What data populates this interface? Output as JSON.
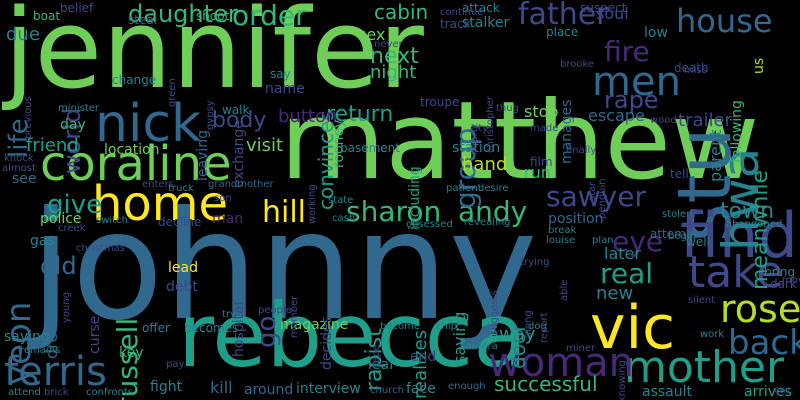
{
  "palette": {
    "background": "#000000",
    "yellow": "#fde725",
    "lime": "#b5de2b",
    "green": "#6ece58",
    "mint": "#35b779",
    "teal": "#1f9e89",
    "cyan": "#26828e",
    "blue": "#31688e",
    "indigo": "#3e4989",
    "purple": "#482878",
    "dark": "#440154"
  },
  "words": [
    {
      "text": "jennifer"
    },
    {
      "text": "johnny"
    },
    {
      "text": "matthew"
    },
    {
      "text": "rebecca"
    },
    {
      "text": "coraline"
    },
    {
      "text": "vic"
    },
    {
      "text": "nick"
    },
    {
      "text": "stu"
    },
    {
      "text": "find"
    },
    {
      "text": "home"
    },
    {
      "text": "hwa"
    },
    {
      "text": "take"
    },
    {
      "text": "mother"
    },
    {
      "text": "woman"
    },
    {
      "text": "ferris"
    },
    {
      "text": "rose"
    },
    {
      "text": "men"
    },
    {
      "text": "father"
    },
    {
      "text": "house"
    },
    {
      "text": "back"
    },
    {
      "text": "yeon"
    },
    {
      "text": "russell"
    },
    {
      "text": "sharon"
    },
    {
      "text": "andy"
    },
    {
      "text": "sawyer"
    },
    {
      "text": "world"
    },
    {
      "text": "life"
    },
    {
      "text": "hill"
    },
    {
      "text": "give"
    },
    {
      "text": "order"
    },
    {
      "text": "daughter"
    },
    {
      "text": "group"
    },
    {
      "text": "real"
    },
    {
      "text": "town"
    },
    {
      "text": "eye"
    },
    {
      "text": "rape"
    },
    {
      "text": "fire"
    },
    {
      "text": "return"
    },
    {
      "text": "body"
    },
    {
      "text": "next"
    },
    {
      "text": "night"
    },
    {
      "text": "cabin"
    },
    {
      "text": "convinces"
    },
    {
      "text": "soul"
    },
    {
      "text": "meanwhile"
    },
    {
      "text": "parent"
    },
    {
      "text": "old"
    },
    {
      "text": "go"
    },
    {
      "text": "successful"
    },
    {
      "text": "saving"
    },
    {
      "text": "realizes"
    },
    {
      "text": "rapist"
    },
    {
      "text": "door"
    },
    {
      "text": "away"
    },
    {
      "text": "later"
    },
    {
      "text": "new"
    },
    {
      "text": "visit"
    },
    {
      "text": "button"
    },
    {
      "text": "friend"
    },
    {
      "text": "dress"
    },
    {
      "text": "hand"
    },
    {
      "text": "run"
    },
    {
      "text": "stop"
    },
    {
      "text": "location"
    },
    {
      "text": "trailer"
    },
    {
      "text": "police"
    },
    {
      "text": "station"
    },
    {
      "text": "lead"
    },
    {
      "text": "magazine"
    },
    {
      "text": "interview"
    },
    {
      "text": "around"
    },
    {
      "text": "kill"
    },
    {
      "text": "fight"
    },
    {
      "text": "end"
    },
    {
      "text": "leaf"
    },
    {
      "text": "face"
    },
    {
      "text": "escape"
    },
    {
      "text": "position"
    },
    {
      "text": "attempt"
    },
    {
      "text": "arrives"
    },
    {
      "text": "due"
    },
    {
      "text": "sex"
    },
    {
      "text": "name"
    },
    {
      "text": "leaving"
    },
    {
      "text": "exchange"
    },
    {
      "text": "key"
    },
    {
      "text": "saying"
    },
    {
      "text": "offer"
    },
    {
      "text": "becomes"
    },
    {
      "text": "debt"
    },
    {
      "text": "including"
    },
    {
      "text": "decides"
    },
    {
      "text": "curse"
    },
    {
      "text": "gas"
    },
    {
      "text": "assault"
    },
    {
      "text": "see"
    },
    {
      "text": "day"
    },
    {
      "text": "manages"
    },
    {
      "text": "low"
    },
    {
      "text": "us"
    },
    {
      "text": "following"
    },
    {
      "text": "well"
    },
    {
      "text": "hospital"
    },
    {
      "text": "man"
    },
    {
      "text": "rooney"
    },
    {
      "text": "shoot"
    },
    {
      "text": "boat"
    },
    {
      "text": "belief"
    },
    {
      "text": "steal"
    },
    {
      "text": "attack"
    },
    {
      "text": "stalker"
    },
    {
      "text": "track"
    },
    {
      "text": "continue"
    },
    {
      "text": "suspect"
    },
    {
      "text": "place"
    },
    {
      "text": "death"
    },
    {
      "text": "change"
    },
    {
      "text": "say"
    },
    {
      "text": "minister"
    },
    {
      "text": "walk"
    },
    {
      "text": "troupe"
    },
    {
      "text": "basement"
    },
    {
      "text": "city"
    },
    {
      "text": "tell"
    },
    {
      "text": "film"
    },
    {
      "text": "grandmother"
    },
    {
      "text": "truck"
    },
    {
      "text": "enters"
    },
    {
      "text": "son"
    },
    {
      "text": "state"
    },
    {
      "text": "cash"
    },
    {
      "text": "working"
    },
    {
      "text": "patient"
    },
    {
      "text": "desire"
    },
    {
      "text": "decline"
    },
    {
      "text": "switch"
    },
    {
      "text": "creek"
    },
    {
      "text": "obsessed"
    },
    {
      "text": "revealing"
    },
    {
      "text": "break"
    },
    {
      "text": "louise"
    },
    {
      "text": "plan"
    },
    {
      "text": "begin"
    },
    {
      "text": "stolen"
    },
    {
      "text": "abandoned"
    },
    {
      "text": "bring"
    },
    {
      "text": "dark"
    },
    {
      "text": "silent"
    },
    {
      "text": "work"
    },
    {
      "text": "car"
    },
    {
      "text": "miner"
    },
    {
      "text": "knowing"
    },
    {
      "text": "church"
    },
    {
      "text": "enough"
    },
    {
      "text": "confronts"
    },
    {
      "text": "remains"
    },
    {
      "text": "attend"
    },
    {
      "text": "brick"
    },
    {
      "text": "pay"
    },
    {
      "text": "people"
    },
    {
      "text": "try"
    },
    {
      "text": "member"
    },
    {
      "text": "chip"
    },
    {
      "text": "become"
    },
    {
      "text": "camera"
    },
    {
      "text": "dog"
    },
    {
      "text": "along"
    },
    {
      "text": "report"
    },
    {
      "text": "able"
    },
    {
      "text": "miss"
    },
    {
      "text": "previous"
    },
    {
      "text": "knock"
    },
    {
      "text": "almost"
    },
    {
      "text": "never"
    },
    {
      "text": "christopher"
    },
    {
      "text": "wood"
    },
    {
      "text": "thug"
    },
    {
      "text": "christmas"
    },
    {
      "text": "young"
    },
    {
      "text": "green"
    },
    {
      "text": "brooke"
    },
    {
      "text": "tape"
    },
    {
      "text": "trying"
    },
    {
      "text": "penguin"
    },
    {
      "text": "finally"
    },
    {
      "text": "nearly"
    },
    {
      "text": "made"
    },
    {
      "text": "star"
    },
    {
      "text": "move"
    },
    {
      "text": "gypsy"
    },
    {
      "text": "suggests"
    },
    {
      "text": "imagination"
    }
  ]
}
